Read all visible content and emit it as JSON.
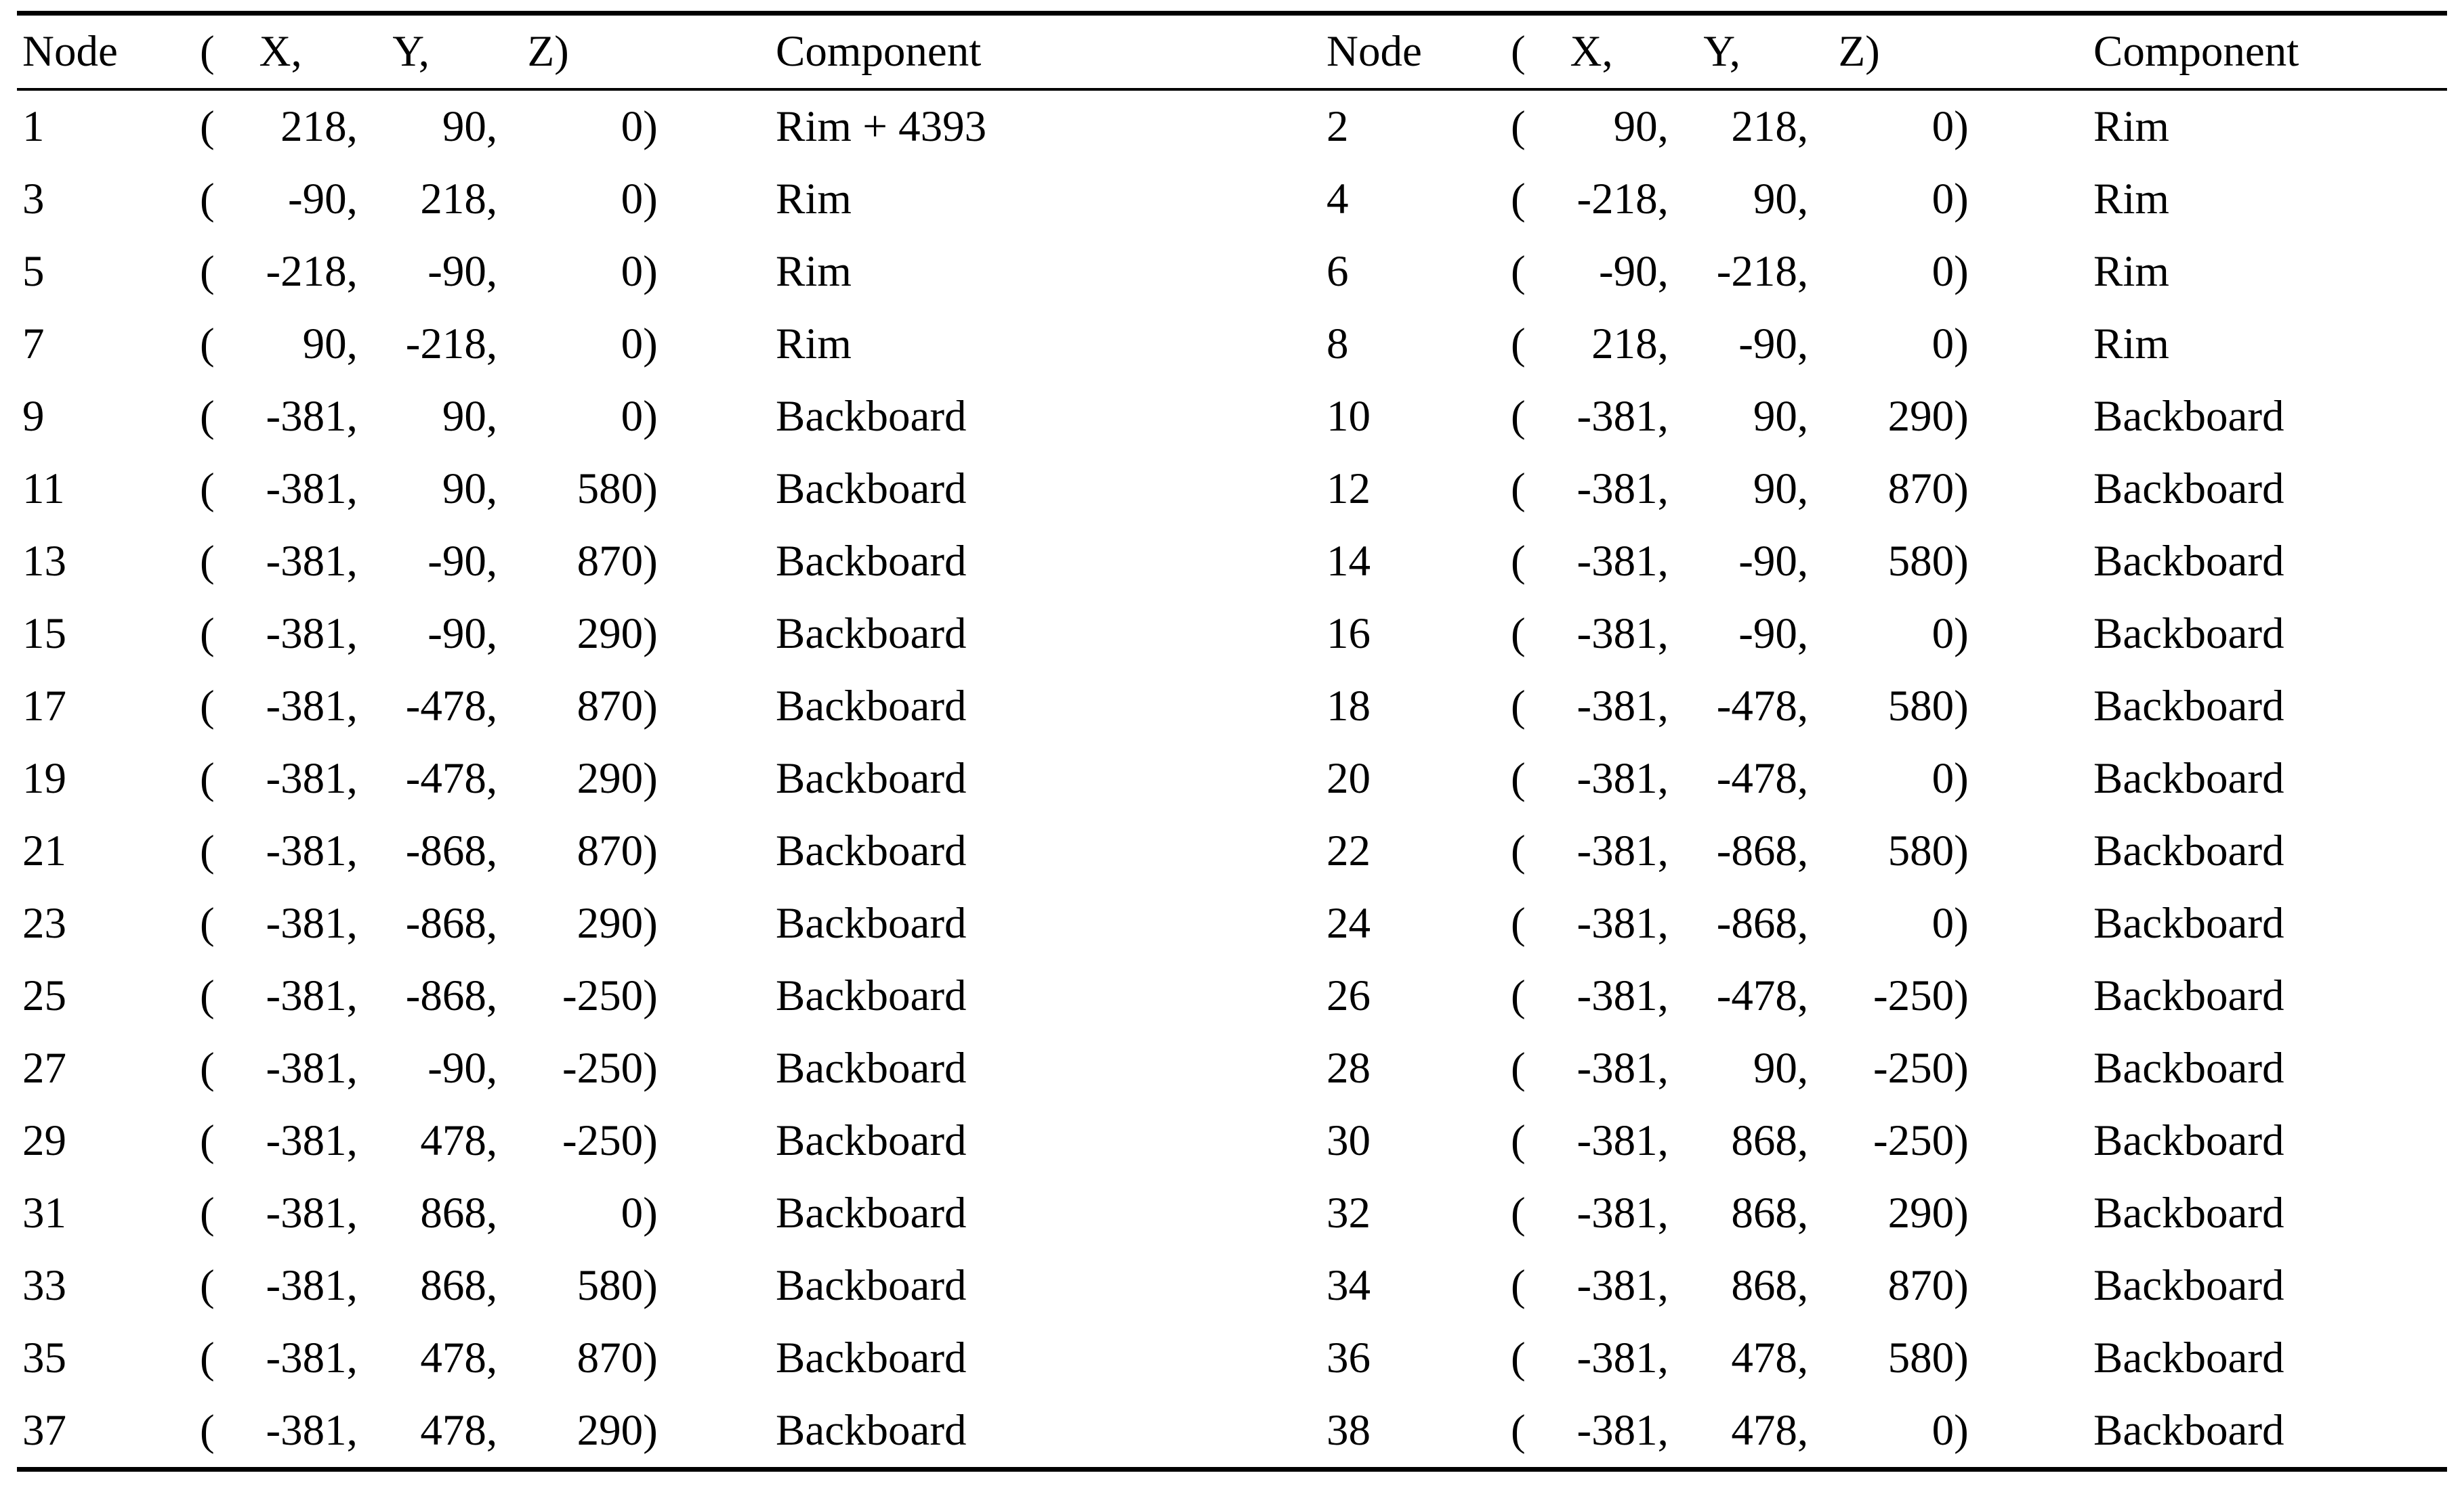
{
  "page": {
    "background": "#ffffff",
    "text_color": "#000000"
  },
  "table": {
    "punct": {
      "open": "(",
      "comma": ",",
      "close": ")"
    },
    "header": {
      "node": "Node",
      "open": "(",
      "x": "X,",
      "y": "Y,",
      "z": "Z)",
      "component": "Component"
    },
    "rows": [
      {
        "l": {
          "node": "1",
          "x": "218",
          "y": "90",
          "z": "0",
          "comp": "Rim + 4393"
        },
        "r": {
          "node": "2",
          "x": "90",
          "y": "218",
          "z": "0",
          "comp": "Rim"
        }
      },
      {
        "l": {
          "node": "3",
          "x": "-90",
          "y": "218",
          "z": "0",
          "comp": "Rim"
        },
        "r": {
          "node": "4",
          "x": "-218",
          "y": "90",
          "z": "0",
          "comp": "Rim"
        }
      },
      {
        "l": {
          "node": "5",
          "x": "-218",
          "y": "-90",
          "z": "0",
          "comp": "Rim"
        },
        "r": {
          "node": "6",
          "x": "-90",
          "y": "-218",
          "z": "0",
          "comp": "Rim"
        }
      },
      {
        "l": {
          "node": "7",
          "x": "90",
          "y": "-218",
          "z": "0",
          "comp": "Rim"
        },
        "r": {
          "node": "8",
          "x": "218",
          "y": "-90",
          "z": "0",
          "comp": "Rim"
        }
      },
      {
        "l": {
          "node": "9",
          "x": "-381",
          "y": "90",
          "z": "0",
          "comp": "Backboard"
        },
        "r": {
          "node": "10",
          "x": "-381",
          "y": "90",
          "z": "290",
          "comp": "Backboard"
        }
      },
      {
        "l": {
          "node": "11",
          "x": "-381",
          "y": "90",
          "z": "580",
          "comp": "Backboard"
        },
        "r": {
          "node": "12",
          "x": "-381",
          "y": "90",
          "z": "870",
          "comp": "Backboard"
        }
      },
      {
        "l": {
          "node": "13",
          "x": "-381",
          "y": "-90",
          "z": "870",
          "comp": "Backboard"
        },
        "r": {
          "node": "14",
          "x": "-381",
          "y": "-90",
          "z": "580",
          "comp": "Backboard"
        }
      },
      {
        "l": {
          "node": "15",
          "x": "-381",
          "y": "-90",
          "z": "290",
          "comp": "Backboard"
        },
        "r": {
          "node": "16",
          "x": "-381",
          "y": "-90",
          "z": "0",
          "comp": "Backboard"
        }
      },
      {
        "l": {
          "node": "17",
          "x": "-381",
          "y": "-478",
          "z": "870",
          "comp": "Backboard"
        },
        "r": {
          "node": "18",
          "x": "-381",
          "y": "-478",
          "z": "580",
          "comp": "Backboard"
        }
      },
      {
        "l": {
          "node": "19",
          "x": "-381",
          "y": "-478",
          "z": "290",
          "comp": "Backboard"
        },
        "r": {
          "node": "20",
          "x": "-381",
          "y": "-478",
          "z": "0",
          "comp": "Backboard"
        }
      },
      {
        "l": {
          "node": "21",
          "x": "-381",
          "y": "-868",
          "z": "870",
          "comp": "Backboard"
        },
        "r": {
          "node": "22",
          "x": "-381",
          "y": "-868",
          "z": "580",
          "comp": "Backboard"
        }
      },
      {
        "l": {
          "node": "23",
          "x": "-381",
          "y": "-868",
          "z": "290",
          "comp": "Backboard"
        },
        "r": {
          "node": "24",
          "x": "-381",
          "y": "-868",
          "z": "0",
          "comp": "Backboard"
        }
      },
      {
        "l": {
          "node": "25",
          "x": "-381",
          "y": "-868",
          "z": "-250",
          "comp": "Backboard"
        },
        "r": {
          "node": "26",
          "x": "-381",
          "y": "-478",
          "z": "-250",
          "comp": "Backboard"
        }
      },
      {
        "l": {
          "node": "27",
          "x": "-381",
          "y": "-90",
          "z": "-250",
          "comp": "Backboard"
        },
        "r": {
          "node": "28",
          "x": "-381",
          "y": "90",
          "z": "-250",
          "comp": "Backboard"
        }
      },
      {
        "l": {
          "node": "29",
          "x": "-381",
          "y": "478",
          "z": "-250",
          "comp": "Backboard"
        },
        "r": {
          "node": "30",
          "x": "-381",
          "y": "868",
          "z": "-250",
          "comp": "Backboard"
        }
      },
      {
        "l": {
          "node": "31",
          "x": "-381",
          "y": "868",
          "z": "0",
          "comp": "Backboard"
        },
        "r": {
          "node": "32",
          "x": "-381",
          "y": "868",
          "z": "290",
          "comp": "Backboard"
        }
      },
      {
        "l": {
          "node": "33",
          "x": "-381",
          "y": "868",
          "z": "580",
          "comp": "Backboard"
        },
        "r": {
          "node": "34",
          "x": "-381",
          "y": "868",
          "z": "870",
          "comp": "Backboard"
        }
      },
      {
        "l": {
          "node": "35",
          "x": "-381",
          "y": "478",
          "z": "870",
          "comp": "Backboard"
        },
        "r": {
          "node": "36",
          "x": "-381",
          "y": "478",
          "z": "580",
          "comp": "Backboard"
        }
      },
      {
        "l": {
          "node": "37",
          "x": "-381",
          "y": "478",
          "z": "290",
          "comp": "Backboard"
        },
        "r": {
          "node": "38",
          "x": "-381",
          "y": "478",
          "z": "0",
          "comp": "Backboard"
        }
      }
    ]
  }
}
